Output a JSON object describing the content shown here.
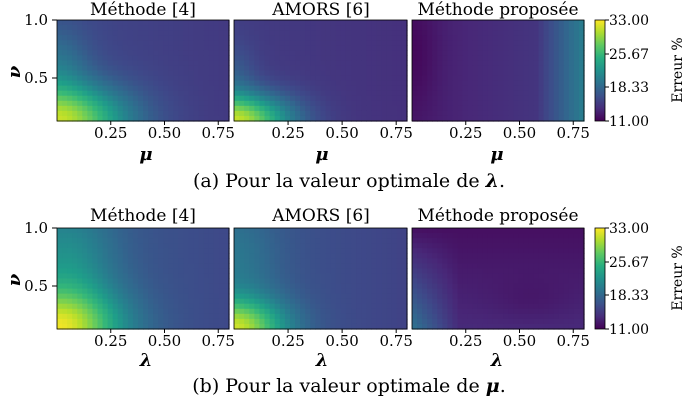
{
  "chart_data": [
    {
      "type": "heatmap",
      "method": "Méthode [4]",
      "panel": "a",
      "xlabel": "μ",
      "ylabel": "ν",
      "xlim": [
        0,
        0.8
      ],
      "ylim": [
        0.1,
        1.0
      ],
      "xticks": [
        "0.25",
        "0.50",
        "0.75"
      ],
      "yticks": [
        "0.5",
        "1.0"
      ],
      "description": "error high (yellow) at low ν for μ < 0.35, decreasing to ~16% elsewhere"
    },
    {
      "type": "heatmap",
      "method": "AMORS [6]",
      "panel": "a",
      "xlabel": "μ",
      "ylabel": "ν",
      "xlim": [
        0,
        0.8
      ],
      "ylim": [
        0.1,
        1.0
      ],
      "xticks": [
        "0.25",
        "0.50",
        "0.75"
      ]
    },
    {
      "type": "heatmap",
      "method": "Méthode proposée",
      "panel": "a",
      "xlabel": "μ",
      "ylabel": "ν",
      "xlim": [
        0,
        0.8
      ],
      "ylim": [
        0.1,
        1.0
      ],
      "xticks": [
        "0.25",
        "0.50",
        "0.75"
      ]
    },
    {
      "type": "heatmap",
      "method": "Méthode [4]",
      "panel": "b",
      "xlabel": "λ",
      "ylabel": "ν",
      "xlim": [
        0,
        0.8
      ],
      "ylim": [
        0.1,
        1.0
      ],
      "xticks": [
        "0.25",
        "0.50",
        "0.75"
      ],
      "yticks": [
        "0.5",
        "1.0"
      ]
    },
    {
      "type": "heatmap",
      "method": "AMORS [6]",
      "panel": "b",
      "xlabel": "λ",
      "ylabel": "ν",
      "xlim": [
        0,
        0.8
      ],
      "ylim": [
        0.1,
        1.0
      ],
      "xticks": [
        "0.25",
        "0.50",
        "0.75"
      ]
    },
    {
      "type": "heatmap",
      "method": "Méthode proposée",
      "panel": "b",
      "xlabel": "λ",
      "ylabel": "ν",
      "xlim": [
        0,
        0.8
      ],
      "ylim": [
        0.1,
        1.0
      ],
      "xticks": [
        "0.25",
        "0.50",
        "0.75"
      ]
    }
  ],
  "colorbar": {
    "label": "Erreur %",
    "ticks": [
      "33.00",
      "25.67",
      "18.33",
      "11.00"
    ],
    "range": [
      11.0,
      33.0
    ],
    "colormap": "viridis"
  },
  "captions": {
    "a_prefix": "(a) Pour la valeur optimale de ",
    "a_symbol": "λ",
    "b_prefix": "(b) Pour la valeur optimale de ",
    "b_symbol": "μ"
  },
  "colors": {
    "viridis_low": "#440154",
    "viridis_high": "#fde725"
  }
}
